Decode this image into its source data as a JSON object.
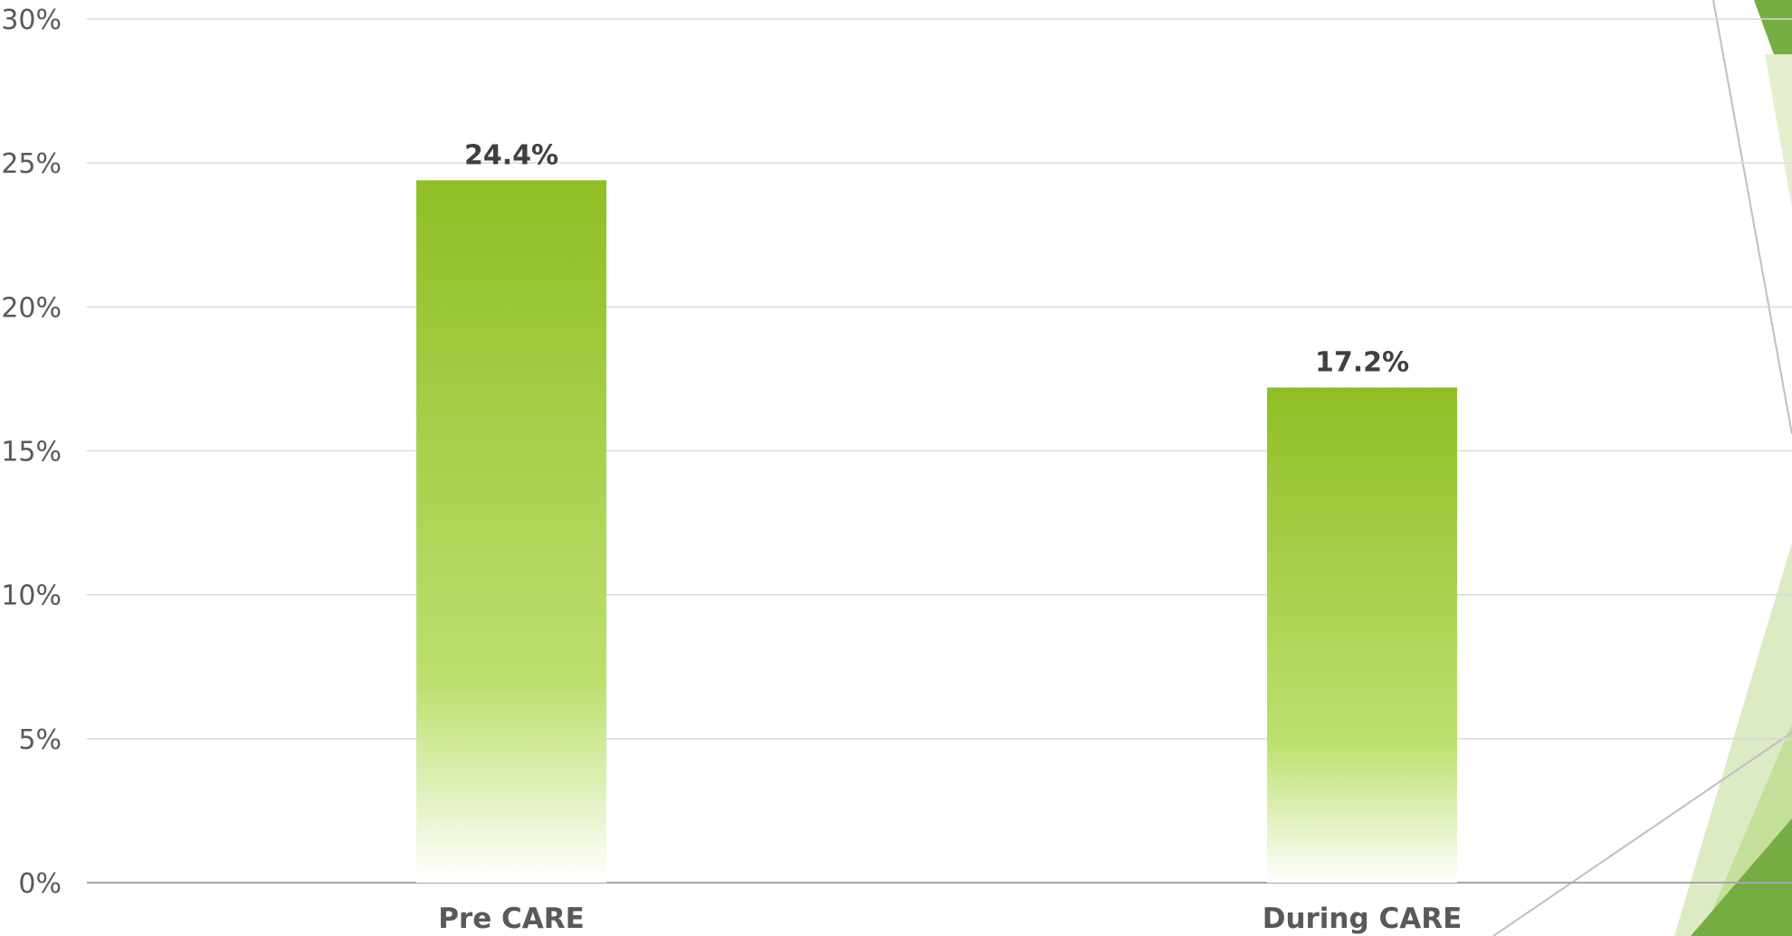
{
  "chart_data": {
    "type": "bar",
    "title": "",
    "xlabel": "",
    "ylabel": "",
    "categories": [
      "Pre CARE",
      "During CARE"
    ],
    "values": [
      24.4,
      17.2
    ],
    "data_labels": [
      "24.4%",
      "17.2%"
    ],
    "ylim": [
      0,
      30
    ],
    "yticks": [
      {
        "value": 30,
        "label": "30%"
      },
      {
        "value": 25,
        "label": "25%"
      },
      {
        "value": 20,
        "label": "20%"
      },
      {
        "value": 15,
        "label": "15%"
      },
      {
        "value": 10,
        "label": "10%"
      },
      {
        "value": 5,
        "label": "5%"
      },
      {
        "value": 0,
        "label": "0%"
      }
    ],
    "grid": true,
    "legend": "none",
    "bar_color_top": "#8fbf24",
    "bar_color_bottom": "#ffffff"
  },
  "decoration": {
    "colors": [
      "#76ad43",
      "#c4df9a",
      "#e3efcf"
    ]
  }
}
